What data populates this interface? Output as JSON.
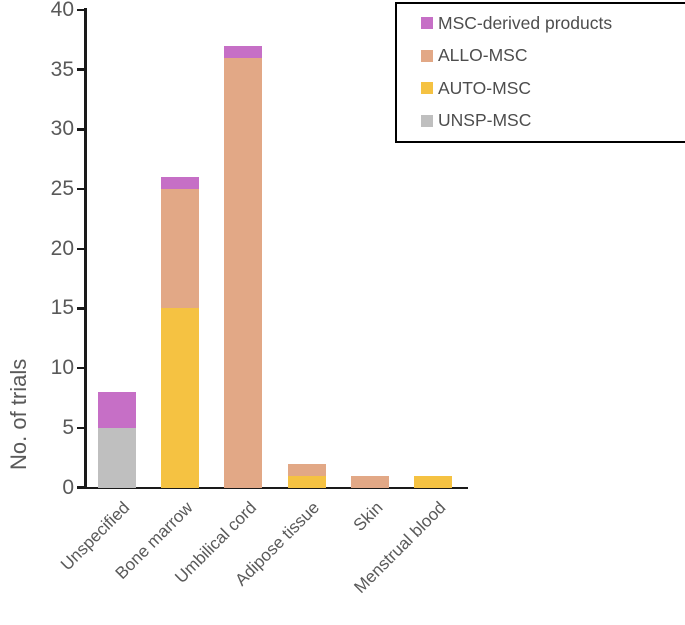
{
  "chart_data": {
    "type": "bar",
    "stacked": true,
    "title": "",
    "xlabel": "",
    "ylabel": "No. of trials",
    "ylim": [
      0,
      40
    ],
    "yticks": [
      0,
      5,
      10,
      15,
      20,
      25,
      30,
      35,
      40
    ],
    "grid": false,
    "categories": [
      "Unspecified",
      "Bone marrow",
      "Umbilical cord",
      "Adipose tissue",
      "Skin",
      "Menstrual blood"
    ],
    "series": [
      {
        "name": "UNSP-MSC",
        "color": "#BFBFBF",
        "values": [
          5,
          0,
          0,
          0,
          0,
          0
        ]
      },
      {
        "name": "AUTO-MSC",
        "color": "#F5C242",
        "values": [
          0,
          15,
          0,
          1,
          0,
          1
        ]
      },
      {
        "name": "ALLO-MSC",
        "color": "#E2A886",
        "values": [
          0,
          10,
          36,
          1,
          1,
          0
        ]
      },
      {
        "name": "MSC-derived products",
        "color": "#C66FC6",
        "values": [
          3,
          1,
          1,
          0,
          0,
          0
        ]
      }
    ],
    "legend": {
      "position": "top-right",
      "entries": [
        {
          "label": "MSC-derived products",
          "color": "#C66FC6"
        },
        {
          "label": "ALLO-MSC",
          "color": "#E2A886"
        },
        {
          "label": "AUTO-MSC",
          "color": "#F5C242"
        },
        {
          "label": "UNSP-MSC",
          "color": "#BFBFBF"
        }
      ]
    },
    "axis_color": "#1a1a1a",
    "text_color": "#595959"
  }
}
